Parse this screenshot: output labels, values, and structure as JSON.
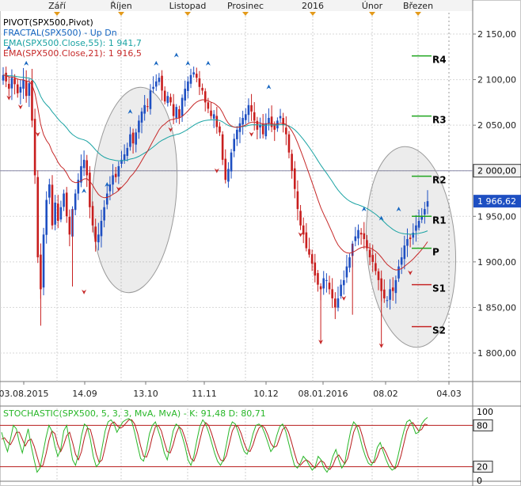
{
  "chart_data": [
    {
      "type": "candlestick",
      "legend": [
        {
          "text": "PIVOT(SPX500,Pivot)",
          "color": "#000000"
        },
        {
          "text": "FRACTAL(SPX500) -  Up  Dn",
          "color": "#1565c0"
        },
        {
          "text": "EMA(SPX500.Close,55): 1 941,7",
          "color": "#1aa3a3"
        },
        {
          "text": "EMA(SPX500.Close,21): 1 916,5",
          "color": "#c62828"
        }
      ],
      "month_labels": [
        "Září",
        "Říjen",
        "Listopad",
        "Prosinec",
        "2016",
        "Únor",
        "Březen"
      ],
      "date_labels": [
        "03.08.2015",
        "14.09",
        "13.10",
        "11.11",
        "10.12",
        "08.01.2016",
        "08.02",
        "04.03"
      ],
      "y_ticks": [
        "2 150,00",
        "2 100,00",
        "2 050,00",
        "2 000,00",
        "1 950,00",
        "1 900,00",
        "1 850,00",
        "1 800,00"
      ],
      "ylim": [
        1775,
        2165
      ],
      "current_price": "1 966,62",
      "reference_level": "2 000,00",
      "pivot_levels": [
        {
          "label": "R4",
          "value": 2126
        },
        {
          "label": "R3",
          "value": 2060
        },
        {
          "label": "R2",
          "value": 1994
        },
        {
          "label": "R1",
          "value": 1950
        },
        {
          "label": "P",
          "value": 1915
        },
        {
          "label": "S1",
          "value": 1875
        },
        {
          "label": "S2",
          "value": 1829
        }
      ],
      "colors": {
        "up": "#1e4fc2",
        "down": "#c81e1e",
        "ema55": "#1aa3a3",
        "ema21": "#c62828",
        "pivot": "#1fa51f"
      },
      "close_series": [
        2105,
        2098,
        2090,
        2102,
        2095,
        2085,
        2092,
        2100,
        2082,
        2096,
        2055,
        1995,
        1905,
        1870,
        1930,
        1968,
        1985,
        1940,
        1965,
        1945,
        1960,
        1975,
        1950,
        1930,
        1958,
        1975,
        1990,
        2005,
        2012,
        1995,
        1960,
        1940,
        1922,
        1930,
        1945,
        1960,
        1975,
        1985,
        1995,
        1993,
        2005,
        2012,
        2018,
        2025,
        2040,
        2030,
        2042,
        2055,
        2065,
        2072,
        2070,
        2088,
        2092,
        2098,
        2102,
        2088,
        2076,
        2082,
        2075,
        2060,
        2070,
        2058,
        2080,
        2090,
        2098,
        2105,
        2108,
        2102,
        2092,
        2088,
        2075,
        2068,
        2060,
        2062,
        2048,
        2042,
        2012,
        1990,
        2002,
        2020,
        2035,
        2045,
        2052,
        2058,
        2062,
        2072,
        2065,
        2055,
        2045,
        2050,
        2040,
        2052,
        2058,
        2048,
        2045,
        2055,
        2060,
        2050,
        2040,
        2020,
        2000,
        1980,
        1958,
        1940,
        1930,
        1915,
        1908,
        1898,
        1885,
        1875,
        1870,
        1882,
        1880,
        1870,
        1860,
        1850,
        1860,
        1875,
        1880,
        1895,
        1905,
        1920,
        1928,
        1935,
        1930,
        1925,
        1915,
        1905,
        1900,
        1890,
        1880,
        1868,
        1860,
        1858,
        1870,
        1868,
        1880,
        1895,
        1905,
        1918,
        1925,
        1925,
        1932,
        1940,
        1945,
        1950,
        1958,
        1966.62
      ],
      "fractals_up": [
        {
          "x": "03.08.2015",
          "value": 2135
        },
        {
          "x": "14.09",
          "value": 1978
        },
        {
          "x": "11.11",
          "value": 2127
        },
        {
          "x": "08.02",
          "value": 1948
        }
      ],
      "fractals_down": [
        {
          "x": "03.08.2015",
          "value": 2080
        },
        {
          "x": "14.09",
          "value": 1867
        },
        {
          "x": "08.01.2016",
          "value": 1812
        },
        {
          "x": "08.02",
          "value": 1808
        }
      ]
    },
    {
      "type": "line",
      "title": "STOCHASTIC(SPX500, 5, 3, 3, MvA, MvA) -  K: 91,48  D: 80,71",
      "y_ticks": [
        "100",
        "80",
        "20",
        "0"
      ],
      "ylim": [
        0,
        100
      ],
      "colors": {
        "K": "#29b729",
        "D": "#b71c1c",
        "level": "#b71c1c"
      },
      "series": [
        {
          "name": "K",
          "values": [
            70,
            55,
            42,
            60,
            80,
            75,
            55,
            40,
            58,
            75,
            50,
            30,
            12,
            18,
            40,
            62,
            80,
            72,
            50,
            35,
            45,
            72,
            80,
            55,
            30,
            22,
            38,
            65,
            82,
            78,
            60,
            35,
            20,
            25,
            48,
            72,
            85,
            88,
            82,
            70,
            78,
            85,
            88,
            90,
            86,
            70,
            50,
            32,
            28,
            45,
            68,
            80,
            85,
            72,
            58,
            40,
            30,
            50,
            72,
            82,
            78,
            65,
            50,
            30,
            22,
            35,
            58,
            78,
            88,
            82,
            70,
            55,
            40,
            28,
            22,
            30,
            52,
            75,
            85,
            82,
            70,
            55,
            42,
            38,
            50,
            68,
            80,
            82,
            78,
            68,
            55,
            42,
            48,
            65,
            78,
            82,
            72,
            55,
            38,
            22,
            18,
            25,
            35,
            30,
            22,
            15,
            20,
            35,
            30,
            18,
            12,
            20,
            35,
            45,
            30,
            18,
            25,
            50,
            72,
            85,
            80,
            65,
            48,
            35,
            25,
            22,
            30,
            48,
            55,
            42,
            30,
            20,
            15,
            18,
            35,
            55,
            72,
            85,
            88,
            80,
            68,
            70,
            82,
            88,
            91.48
          ]
        },
        {
          "name": "D",
          "values": [
            60,
            62,
            56,
            52,
            60,
            70,
            70,
            60,
            50,
            58,
            60,
            50,
            35,
            20,
            22,
            38,
            58,
            72,
            68,
            52,
            42,
            52,
            65,
            70,
            55,
            38,
            30,
            42,
            62,
            76,
            74,
            58,
            38,
            26,
            30,
            48,
            68,
            82,
            85,
            80,
            76,
            78,
            83,
            88,
            88,
            82,
            68,
            50,
            35,
            34,
            46,
            64,
            78,
            80,
            72,
            56,
            42,
            40,
            52,
            68,
            78,
            74,
            62,
            46,
            32,
            28,
            40,
            58,
            76,
            84,
            80,
            68,
            54,
            40,
            30,
            28,
            36,
            54,
            72,
            80,
            78,
            68,
            54,
            44,
            42,
            52,
            66,
            76,
            80,
            76,
            66,
            54,
            48,
            50,
            62,
            74,
            78,
            70,
            56,
            40,
            26,
            22,
            27,
            30,
            27,
            22,
            18,
            24,
            29,
            26,
            18,
            16,
            22,
            33,
            37,
            30,
            24,
            32,
            50,
            70,
            80,
            78,
            64,
            48,
            34,
            26,
            26,
            34,
            46,
            48,
            40,
            30,
            22,
            17,
            22,
            36,
            54,
            72,
            82,
            84,
            78,
            72,
            74,
            82,
            80.71
          ]
        }
      ],
      "levels": [
        80,
        20
      ]
    }
  ]
}
